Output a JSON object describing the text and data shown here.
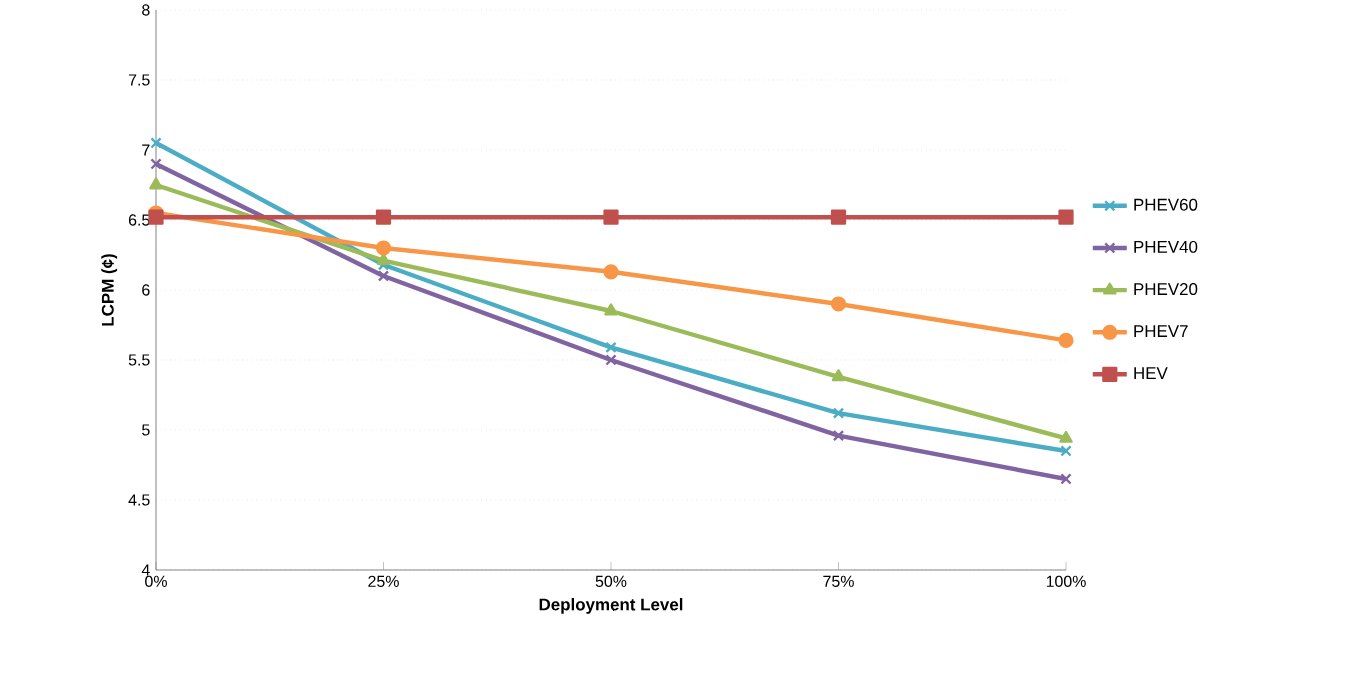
{
  "chart_data": {
    "type": "line",
    "xlabel": "Deployment Level",
    "ylabel": "LCPM (¢)",
    "categories": [
      "0%",
      "25%",
      "50%",
      "75%",
      "100%"
    ],
    "series": [
      {
        "name": "PHEV60",
        "color": "#4bacc6",
        "marker": "cross",
        "values": [
          7.05,
          6.18,
          5.59,
          5.12,
          4.85
        ]
      },
      {
        "name": "PHEV40",
        "color": "#8064a2",
        "marker": "cross",
        "values": [
          6.9,
          6.1,
          5.5,
          4.96,
          4.65
        ]
      },
      {
        "name": "PHEV20",
        "color": "#9bbb59",
        "marker": "triangle",
        "values": [
          6.75,
          6.21,
          5.85,
          5.38,
          4.94
        ]
      },
      {
        "name": "PHEV7",
        "color": "#f79646",
        "marker": "circle",
        "values": [
          6.55,
          6.3,
          6.13,
          5.9,
          5.64
        ]
      },
      {
        "name": "HEV",
        "color": "#c0504d",
        "marker": "square",
        "values": [
          6.52,
          6.52,
          6.52,
          6.52,
          6.52
        ]
      }
    ],
    "ylim": [
      4,
      8
    ],
    "yticks": [
      4,
      4.5,
      5,
      5.5,
      6,
      6.5,
      7,
      7.5,
      8
    ],
    "grid": "y",
    "legend": "right"
  }
}
